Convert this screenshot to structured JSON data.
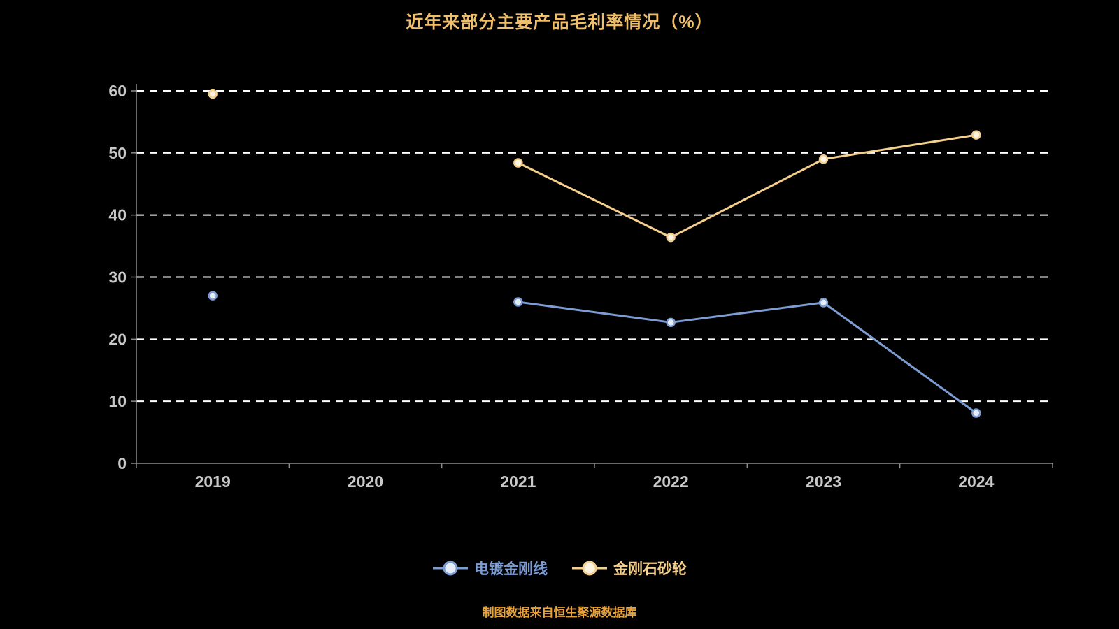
{
  "title": "近年来部分主要产品毛利率情况（%）",
  "footer": "制图数据来自恒生聚源数据库",
  "chart_data": {
    "type": "line",
    "categories": [
      "2019",
      "2020",
      "2021",
      "2022",
      "2023",
      "2024"
    ],
    "series": [
      {
        "name": "电镀金刚线",
        "color": "#7C9DD4",
        "marker_fill": "#E6EDF8",
        "values": [
          27.0,
          null,
          26.0,
          22.7,
          25.9,
          8.1
        ]
      },
      {
        "name": "金刚石砂轮",
        "color": "#F5CF8C",
        "marker_fill": "#FCF4E0",
        "values": [
          59.5,
          null,
          48.4,
          36.4,
          49.0,
          52.9
        ]
      }
    ],
    "ylim": [
      0,
      60
    ],
    "ytick_step": 10,
    "grid": "horizontal-dashed-white",
    "legend_position": "bottom",
    "note": "no data for 2020; 2019 points are isolated markers"
  },
  "colors": {
    "background": "#000000",
    "title": "#EFBE6A",
    "axis_label": "#C8C8C8",
    "axis_line": "#8A8A8A",
    "gridline": "#FFFFFF",
    "footer": "#E8A23C"
  }
}
